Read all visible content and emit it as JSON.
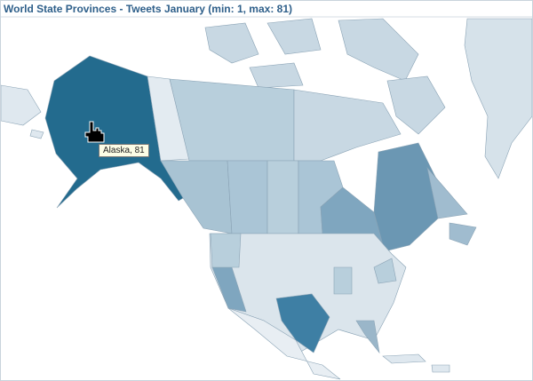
{
  "header": {
    "title": "World State Provinces - Tweets January (min: 1, max: 81)"
  },
  "map": {
    "tooltip": "Alaska, 81"
  }
}
